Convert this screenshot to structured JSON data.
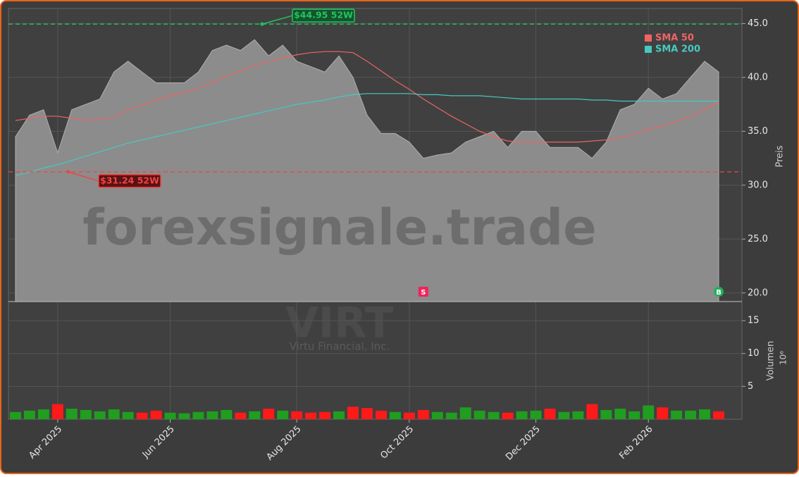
{
  "chart_data": {
    "type": "area",
    "watermark": "forexsignale.trade",
    "ticker": "VIRT",
    "company": "Virtu Financial, Inc.",
    "price_axis_label": "Preis",
    "categories": [
      null,
      null,
      null,
      "Apr 2025",
      null,
      null,
      null,
      null,
      null,
      null,
      null,
      "Jun 2025",
      null,
      null,
      null,
      null,
      null,
      null,
      null,
      null,
      "Aug 2025",
      null,
      null,
      null,
      null,
      null,
      null,
      null,
      "Oct 2025",
      null,
      null,
      null,
      null,
      null,
      null,
      null,
      null,
      "Dec 2025",
      null,
      null,
      null,
      null,
      null,
      null,
      null,
      "Feb 2026",
      null,
      null,
      null,
      null,
      null
    ],
    "close": [
      34.5,
      36.5,
      37,
      33,
      37,
      37.5,
      38,
      40.5,
      41.5,
      40.5,
      39.5,
      39.5,
      39.5,
      40.5,
      42.5,
      43,
      42.5,
      43.5,
      42,
      43,
      41.5,
      41,
      40.5,
      42,
      40,
      36.5,
      34.8,
      34.8,
      34,
      32.5,
      32.8,
      33,
      34,
      34.5,
      35,
      33.5,
      35,
      35,
      33.5,
      33.5,
      33.5,
      32.5,
      34,
      37,
      37.5,
      39,
      38,
      38.5,
      40,
      41.5,
      40.5
    ],
    "close_color": "#8c8c8c",
    "series": [
      {
        "name": "SMA 50",
        "color": "#f06464",
        "values": [
          36,
          36.2,
          36.4,
          36.4,
          36.2,
          36,
          36.1,
          36.3,
          37,
          37.4,
          37.9,
          38.3,
          38.6,
          39,
          39.5,
          40.1,
          40.6,
          41.1,
          41.5,
          41.8,
          42.1,
          42.3,
          42.4,
          42.4,
          42.3,
          41.5,
          40.6,
          39.7,
          38.9,
          38,
          37.2,
          36.4,
          35.7,
          35,
          34.5,
          34.1,
          34,
          34,
          34,
          34,
          34,
          34.1,
          34.2,
          34.4,
          34.7,
          35.2,
          35.5,
          35.9,
          36.4,
          37,
          37.7
        ]
      },
      {
        "name": "SMA 200",
        "color": "#48c9c0",
        "values": [
          30.9,
          31.2,
          31.6,
          31.9,
          32.3,
          32.7,
          33.1,
          33.5,
          33.9,
          34.2,
          34.5,
          34.8,
          35.1,
          35.4,
          35.7,
          36,
          36.3,
          36.6,
          36.9,
          37.2,
          37.5,
          37.7,
          37.9,
          38.2,
          38.4,
          38.5,
          38.5,
          38.5,
          38.5,
          38.4,
          38.4,
          38.3,
          38.3,
          38.3,
          38.2,
          38.1,
          38,
          38,
          38,
          38,
          38,
          37.9,
          37.9,
          37.8,
          37.8,
          37.8,
          37.8,
          37.8,
          37.8,
          37.8,
          37.8
        ]
      }
    ],
    "ylim": [
      19.2,
      46.4
    ],
    "yticks": [
      {
        "value": 20,
        "label": "20.0"
      },
      {
        "value": 25,
        "label": "25.0"
      },
      {
        "value": 30,
        "label": "30.0"
      },
      {
        "value": 35,
        "label": "35.0"
      },
      {
        "value": 40,
        "label": "40.0"
      },
      {
        "value": 45,
        "label": "45.0"
      }
    ],
    "grid": true,
    "annotations": [
      {
        "label": "$44.95 52W",
        "value": 44.95,
        "color": "#22c55e"
      },
      {
        "label": "$31.24 52W",
        "value": 31.24,
        "color": "#ef4444"
      }
    ],
    "signals": [
      null,
      null,
      null,
      null,
      null,
      null,
      null,
      null,
      null,
      null,
      null,
      null,
      null,
      null,
      null,
      null,
      null,
      null,
      null,
      null,
      null,
      null,
      null,
      null,
      null,
      null,
      null,
      null,
      null,
      "S",
      null,
      null,
      null,
      null,
      null,
      null,
      null,
      null,
      null,
      null,
      null,
      null,
      null,
      null,
      null,
      null,
      null,
      null,
      null,
      null,
      "B"
    ],
    "volume": {
      "label": "Volumen",
      "unit": "10⁶",
      "values": [
        1.1,
        1.3,
        1.5,
        2.3,
        1.6,
        1.4,
        1.2,
        1.5,
        1.1,
        1.0,
        1.3,
        1.0,
        0.9,
        1.1,
        1.2,
        1.4,
        1.0,
        1.2,
        1.6,
        1.3,
        1.2,
        1.0,
        1.1,
        1.2,
        1.9,
        1.7,
        1.3,
        1.1,
        1.0,
        1.4,
        1.1,
        1.0,
        1.8,
        1.3,
        1.1,
        1.0,
        1.2,
        1.3,
        1.6,
        1.1,
        1.2,
        2.3,
        1.4,
        1.6,
        1.2,
        2.1,
        1.8,
        1.3,
        1.3,
        1.5,
        1.2
      ],
      "up_color": "#1f9e1f",
      "down_color": "#ff1a1a",
      "ylim": [
        0,
        17.9
      ],
      "yticks": [
        5,
        10,
        15
      ]
    }
  }
}
